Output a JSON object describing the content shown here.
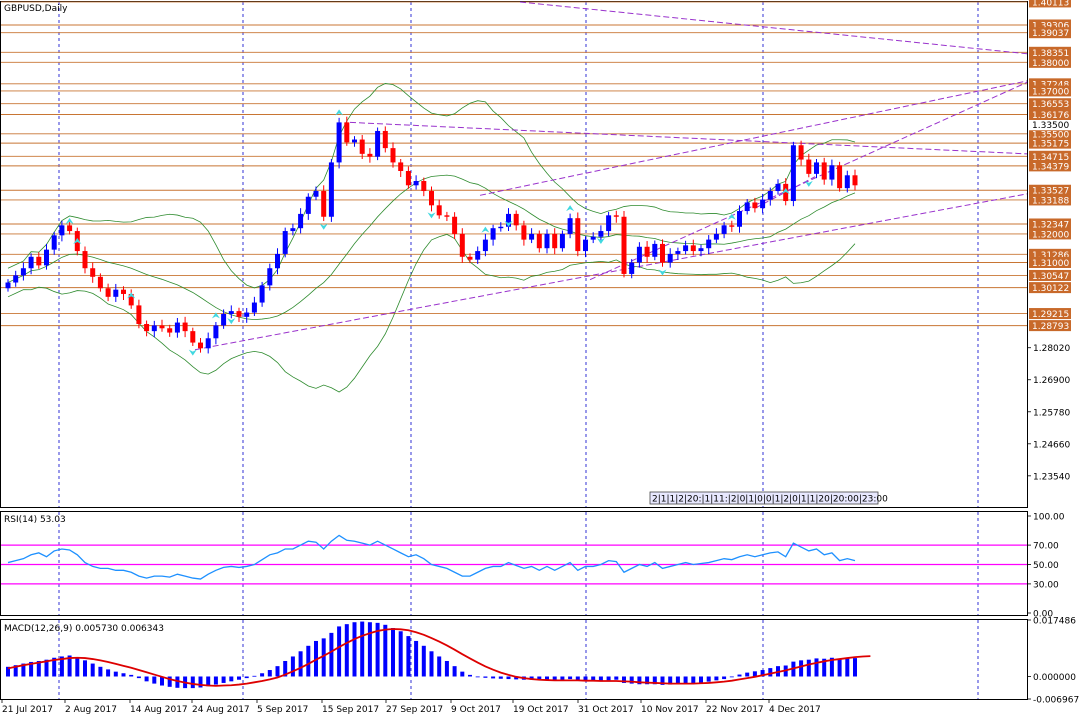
{
  "chart_data": [
    {
      "type": "candlestick",
      "title": "GBPUSD,Daily",
      "ylim": [
        1.2245,
        1.4011
      ],
      "price_ticks": [
        "1.28020",
        "1.26900",
        "1.25780",
        "1.24660",
        "1.23540"
      ],
      "current_price_tag": "1.33500",
      "levels": [
        {
          "label": "1.40113",
          "value": 1.40113
        },
        {
          "label": "1.39306",
          "value": 1.39306
        },
        {
          "label": "1.39037",
          "value": 1.39037
        },
        {
          "label": "1.38351",
          "value": 1.38351
        },
        {
          "label": "1.38000",
          "value": 1.38
        },
        {
          "label": "1.37248",
          "value": 1.37248
        },
        {
          "label": "1.37000",
          "value": 1.37
        },
        {
          "label": "1.36553",
          "value": 1.36553
        },
        {
          "label": "1.36176",
          "value": 1.36176
        },
        {
          "label": "1.35500",
          "value": 1.355
        },
        {
          "label": "1.35175",
          "value": 1.35175
        },
        {
          "label": "1.34715",
          "value": 1.34715
        },
        {
          "label": "1.34379",
          "value": 1.34379
        },
        {
          "label": "1.33527",
          "value": 1.33527
        },
        {
          "label": "1.33188",
          "value": 1.33188
        },
        {
          "label": "1.32347",
          "value": 1.32347
        },
        {
          "label": "1.32000",
          "value": 1.32
        },
        {
          "label": "1.31286",
          "value": 1.31286
        },
        {
          "label": "1.31000",
          "value": 1.31
        },
        {
          "label": "1.30547",
          "value": 1.30547
        },
        {
          "label": "1.30122",
          "value": 1.30122
        },
        {
          "label": "1.29215",
          "value": 1.29215
        },
        {
          "label": "1.28793",
          "value": 1.28793
        }
      ],
      "x_dates": [
        "21 Jul 2017",
        "2 Aug 2017",
        "14 Aug 2017",
        "24 Aug 2017",
        "5 Sep 2017",
        "15 Sep 2017",
        "27 Sep 2017",
        "9 Oct 2017",
        "19 Oct 2017",
        "31 Oct 2017",
        "10 Nov 2017",
        "22 Nov 2017",
        "4 Dec 2017"
      ],
      "closes": [
        1.303,
        1.3055,
        1.308,
        1.312,
        1.309,
        1.3145,
        1.3195,
        1.323,
        1.321,
        1.314,
        1.308,
        1.305,
        1.301,
        1.298,
        1.3005,
        1.299,
        1.295,
        1.2885,
        1.286,
        1.288,
        1.287,
        1.2855,
        1.289,
        1.286,
        1.282,
        1.28,
        1.2835,
        1.288,
        1.292,
        1.293,
        1.291,
        1.2925,
        1.296,
        1.302,
        1.308,
        1.313,
        1.321,
        1.322,
        1.327,
        1.333,
        1.335,
        1.326,
        1.345,
        1.359,
        1.352,
        1.353,
        1.348,
        1.347,
        1.356,
        1.35,
        1.345,
        1.342,
        1.337,
        1.3385,
        1.335,
        1.33,
        1.3265,
        1.326,
        1.32,
        1.312,
        1.311,
        1.314,
        1.318,
        1.322,
        1.3225,
        1.327,
        1.323,
        1.318,
        1.32,
        1.315,
        1.32,
        1.315,
        1.32,
        1.3255,
        1.314,
        1.318,
        1.319,
        1.321,
        1.3265,
        1.326,
        1.306,
        1.31,
        1.3155,
        1.312,
        1.3165,
        1.31,
        1.313,
        1.314,
        1.316,
        1.314,
        1.315,
        1.318,
        1.32,
        1.323,
        1.3225,
        1.328,
        1.331,
        1.329,
        1.332,
        1.335,
        1.3375,
        1.3315,
        1.351,
        1.346,
        1.341,
        1.345,
        1.339,
        1.344,
        1.336,
        1.3405,
        1.337
      ],
      "rsi": {
        "label": "RSI(14) 53.03",
        "ylim": [
          0,
          100
        ],
        "ticks": [
          "100.00",
          "70.00",
          "50.00",
          "30.00",
          "0.00"
        ],
        "levels": [
          70,
          50,
          30
        ],
        "values": [
          52,
          54,
          56,
          60,
          62,
          58,
          64,
          66,
          65,
          60,
          52,
          48,
          46,
          46,
          44,
          44,
          42,
          38,
          36,
          38,
          38,
          37,
          40,
          38,
          36,
          35,
          40,
          44,
          47,
          48,
          47,
          48,
          50,
          55,
          60,
          62,
          66,
          66,
          70,
          74,
          73,
          66,
          74,
          80,
          75,
          74,
          72,
          70,
          74,
          70,
          66,
          62,
          58,
          60,
          56,
          50,
          48,
          46,
          42,
          38,
          38,
          42,
          46,
          48,
          48,
          52,
          49,
          46,
          48,
          44,
          48,
          44,
          48,
          52,
          44,
          48,
          48,
          50,
          54,
          53,
          42,
          46,
          50,
          48,
          52,
          46,
          48,
          50,
          52,
          50,
          51,
          52,
          54,
          56,
          55,
          58,
          60,
          58,
          60,
          62,
          63,
          58,
          72,
          68,
          64,
          66,
          60,
          62,
          54,
          56,
          54
        ]
      },
      "macd": {
        "label": "MACD(12,26,9) 0.005730 0.006343",
        "ylim": [
          -0.006967,
          0.017486
        ],
        "ticks": [
          "0.017486",
          "0.000000",
          "-0.006967"
        ],
        "histogram": [
          0.003,
          0.0035,
          0.004,
          0.0045,
          0.0048,
          0.0052,
          0.0058,
          0.0062,
          0.0065,
          0.006,
          0.005,
          0.004,
          0.003,
          0.0022,
          0.0015,
          0.001,
          0.0005,
          -0.0005,
          -0.0015,
          -0.0022,
          -0.0028,
          -0.0032,
          -0.0035,
          -0.0036,
          -0.0036,
          -0.0034,
          -0.003,
          -0.0025,
          -0.002,
          -0.0015,
          -0.001,
          -0.0005,
          0.0002,
          0.001,
          0.002,
          0.0032,
          0.0048,
          0.0062,
          0.0078,
          0.0095,
          0.011,
          0.0118,
          0.0135,
          0.0155,
          0.0162,
          0.0168,
          0.017,
          0.0168,
          0.0166,
          0.016,
          0.015,
          0.014,
          0.0125,
          0.011,
          0.0095,
          0.0078,
          0.0062,
          0.0048,
          0.0032,
          0.0015,
          0.0005,
          -0.0002,
          -0.0004,
          -0.0006,
          -0.0007,
          -0.0008,
          -0.0009,
          -0.001,
          -0.001,
          -0.001,
          -0.001,
          -0.001,
          -0.001,
          -0.0008,
          -0.0012,
          -0.0014,
          -0.0014,
          -0.0014,
          -0.0012,
          -0.001,
          -0.002,
          -0.0022,
          -0.0024,
          -0.0024,
          -0.0024,
          -0.0026,
          -0.0025,
          -0.0024,
          -0.0022,
          -0.0022,
          -0.002,
          -0.0016,
          -0.0012,
          -0.0008,
          -0.0002,
          0.0006,
          0.0012,
          0.0016,
          0.002,
          0.0026,
          0.0032,
          0.0034,
          0.0046,
          0.005,
          0.0052,
          0.0056,
          0.0055,
          0.0058,
          0.0055,
          0.0057,
          0.0057
        ],
        "signal": [
          0.0025,
          0.003,
          0.0035,
          0.0039,
          0.0043,
          0.0047,
          0.0051,
          0.0054,
          0.0057,
          0.0058,
          0.0057,
          0.0054,
          0.005,
          0.0045,
          0.0039,
          0.0033,
          0.0027,
          0.002,
          0.0013,
          0.0006,
          -0.0001,
          -0.0008,
          -0.0014,
          -0.0019,
          -0.0023,
          -0.0026,
          -0.0028,
          -0.0029,
          -0.0028,
          -0.0027,
          -0.0025,
          -0.0022,
          -0.0018,
          -0.0014,
          -0.0009,
          -0.0003,
          0.0006,
          0.0016,
          0.0027,
          0.0039,
          0.0052,
          0.0064,
          0.0077,
          0.0091,
          0.0104,
          0.0116,
          0.0126,
          0.0134,
          0.0141,
          0.0145,
          0.0147,
          0.0146,
          0.0143,
          0.0137,
          0.0129,
          0.0119,
          0.0108,
          0.0096,
          0.0083,
          0.0069,
          0.0056,
          0.0043,
          0.0031,
          0.0021,
          0.0012,
          0.0005,
          -0.0001,
          -0.0005,
          -0.0008,
          -0.001,
          -0.0011,
          -0.0012,
          -0.0012,
          -0.0012,
          -0.0012,
          -0.0013,
          -0.0013,
          -0.0014,
          -0.0014,
          -0.0014,
          -0.0015,
          -0.0016,
          -0.0018,
          -0.0019,
          -0.002,
          -0.0021,
          -0.0022,
          -0.0022,
          -0.0022,
          -0.0022,
          -0.0021,
          -0.002,
          -0.0018,
          -0.0016,
          -0.0013,
          -0.0009,
          -0.0005,
          -0.0001,
          0.0004,
          0.0009,
          0.0014,
          0.0019,
          0.0025,
          0.0031,
          0.0037,
          0.0042,
          0.0047,
          0.0051,
          0.0054,
          0.0057,
          0.006,
          0.0062,
          0.0063
        ]
      }
    }
  ],
  "tooltip_text": "2|1|1|2|20:|1|11:|2|0|1|0|0|1|2|0|1|1|20|20:00|23:00"
}
